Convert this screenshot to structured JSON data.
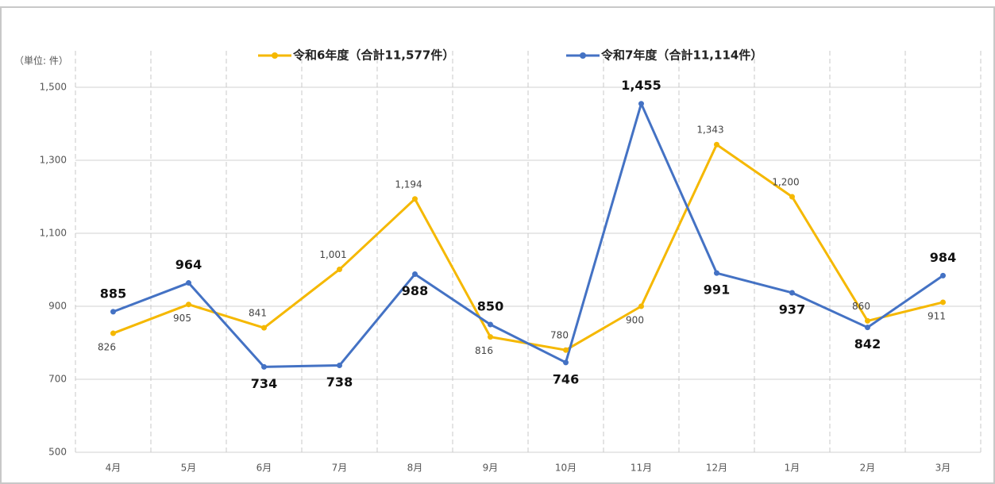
{
  "chart_data": {
    "type": "line",
    "y_label": "（単位: 件）",
    "categories": [
      "4月",
      "5月",
      "6月",
      "7月",
      "8月",
      "9月",
      "10月",
      "11月",
      "12月",
      "1月",
      "2月",
      "3月"
    ],
    "series": [
      {
        "name": "令和6年度（合計11,577件）",
        "color": "#f5b800",
        "values": [
          826,
          905,
          841,
          1001,
          1194,
          816,
          780,
          900,
          1343,
          1200,
          860,
          911
        ],
        "value_labels": [
          "826",
          "905",
          "841",
          "1,001",
          "1,194",
          "816",
          "780",
          "900",
          "1,343",
          "1,200",
          "860",
          "911"
        ]
      },
      {
        "name": "令和7年度（合計11,114件）",
        "color": "#4472c4",
        "values": [
          885,
          964,
          734,
          738,
          988,
          850,
          746,
          1455,
          991,
          937,
          842,
          984
        ],
        "value_labels": [
          "885",
          "964",
          "734",
          "738",
          "988",
          "850",
          "746",
          "1,455",
          "991",
          "937",
          "842",
          "984"
        ]
      }
    ],
    "ylim": [
      500,
      1600
    ],
    "yticks": [
      500,
      700,
      900,
      {
        "value": 1100,
        "label": "1,100"
      },
      {
        "value": 1300,
        "label": "1,300"
      },
      {
        "value": 1500,
        "label": "1,500"
      }
    ],
    "grid": true
  }
}
